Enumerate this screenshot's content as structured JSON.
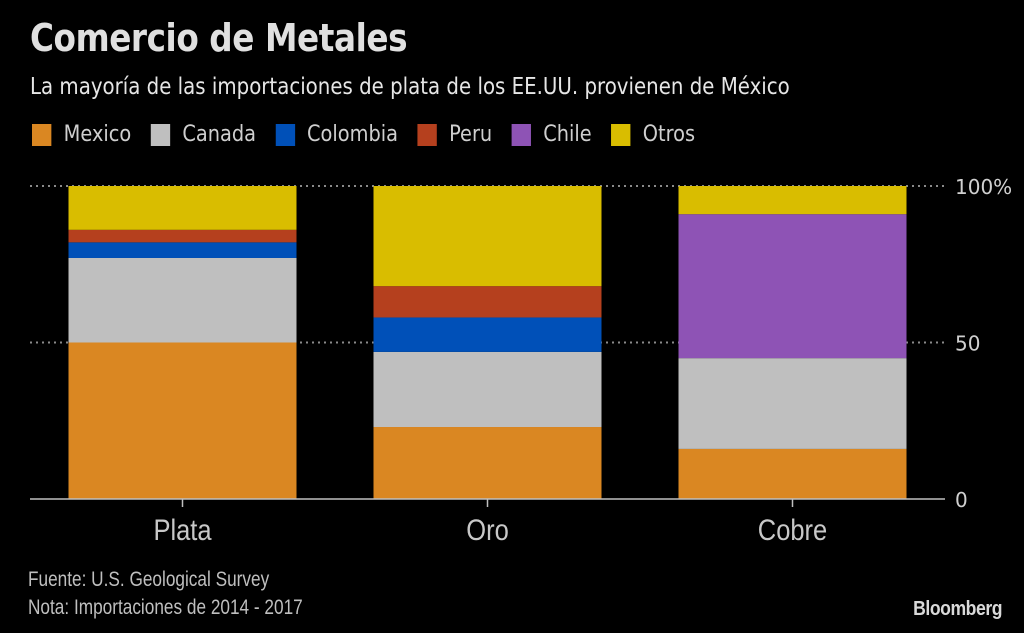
{
  "header": {
    "title": "Comercio de Metales",
    "subtitle": "La mayoría de las importaciones de plata de los EE.UU. provienen de México"
  },
  "footer": {
    "source": "Fuente: U.S. Geological Survey",
    "note": "Nota: Importaciones de 2014 - 2017",
    "brand": "Bloomberg"
  },
  "chart_data": {
    "type": "bar",
    "stacked": true,
    "percent": true,
    "title": "Comercio de Metales",
    "subtitle": "La mayoría de las importaciones de plata de los EE.UU. provienen de México",
    "categories": [
      "Plata",
      "Oro",
      "Cobre"
    ],
    "series": [
      {
        "name": "Mexico",
        "color": "#da8722",
        "values": [
          50,
          23,
          16
        ]
      },
      {
        "name": "Canada",
        "color": "#bfbfbf",
        "values": [
          27,
          24,
          29
        ]
      },
      {
        "name": "Colombia",
        "color": "#0050b8",
        "values": [
          5,
          11,
          0
        ]
      },
      {
        "name": "Peru",
        "color": "#b5401e",
        "values": [
          4,
          10,
          0
        ]
      },
      {
        "name": "Chile",
        "color": "#8e53b5",
        "values": [
          0,
          0,
          46
        ]
      },
      {
        "name": "Otros",
        "color": "#d9bd00",
        "values": [
          14,
          32,
          9
        ]
      }
    ],
    "ylim": [
      0,
      100
    ],
    "yticks": [
      0,
      50,
      100
    ],
    "ytick_labels": [
      "0",
      "50",
      "100%"
    ],
    "y_axis_side": "right",
    "grid": "dotted horizontal",
    "legend_position": "top-left",
    "xlabel": "",
    "ylabel": ""
  }
}
